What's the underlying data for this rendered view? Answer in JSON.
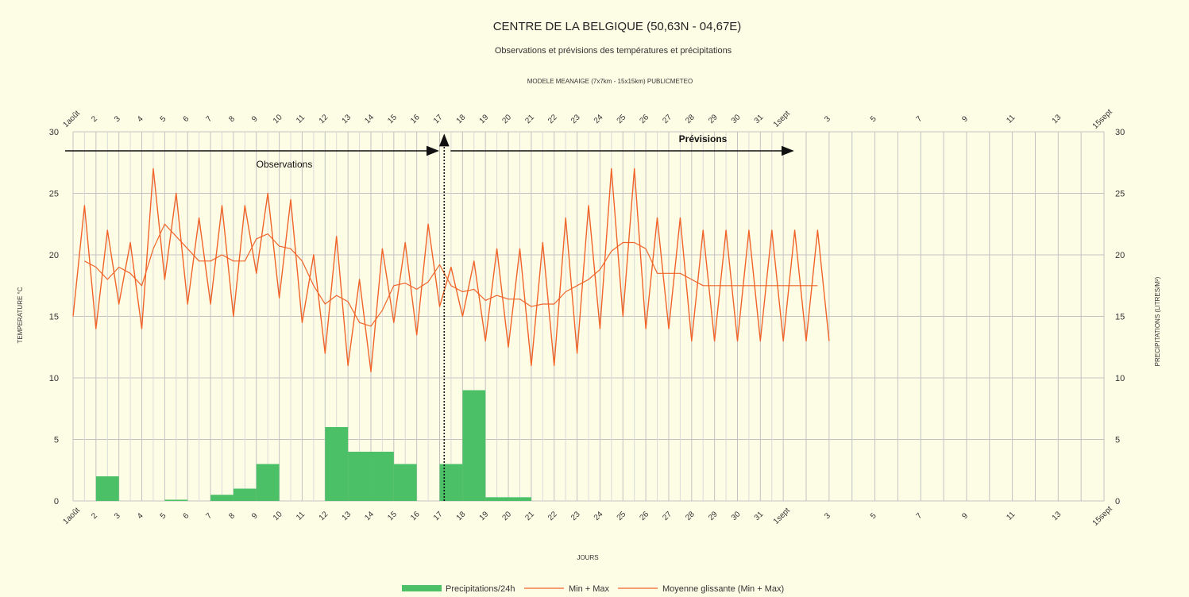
{
  "chart_data": {
    "type": "bar+line",
    "title": "CENTRE DE LA BELGIQUE (50,63N - 04,67E)",
    "subtitle": "Observations et prévisions des températures et précipitations",
    "model_label": "MODELE MEANAIGE (7x7km - 15x15km) PUBLICMETEO",
    "xlabel": "JOURS",
    "ylabel_left": "TEMPERATURE °C",
    "ylabel_right": "PRECIPITATIONS (LITRES/M²)",
    "ylim": [
      0,
      30
    ],
    "yticks": [
      0,
      5,
      10,
      15,
      20,
      25,
      30
    ],
    "x_range_days": [
      1,
      46
    ],
    "x_ticks": [
      {
        "day": 1,
        "label": "1août"
      },
      {
        "day": 2,
        "label": "2"
      },
      {
        "day": 3,
        "label": "3"
      },
      {
        "day": 4,
        "label": "4"
      },
      {
        "day": 5,
        "label": "5"
      },
      {
        "day": 6,
        "label": "6"
      },
      {
        "day": 7,
        "label": "7"
      },
      {
        "day": 8,
        "label": "8"
      },
      {
        "day": 9,
        "label": "9"
      },
      {
        "day": 10,
        "label": "10"
      },
      {
        "day": 11,
        "label": "11"
      },
      {
        "day": 12,
        "label": "12"
      },
      {
        "day": 13,
        "label": "13"
      },
      {
        "day": 14,
        "label": "14"
      },
      {
        "day": 15,
        "label": "15"
      },
      {
        "day": 16,
        "label": "16"
      },
      {
        "day": 17,
        "label": "17"
      },
      {
        "day": 18,
        "label": "18"
      },
      {
        "day": 19,
        "label": "19"
      },
      {
        "day": 20,
        "label": "20"
      },
      {
        "day": 21,
        "label": "21"
      },
      {
        "day": 22,
        "label": "22"
      },
      {
        "day": 23,
        "label": "23"
      },
      {
        "day": 24,
        "label": "24"
      },
      {
        "day": 25,
        "label": "25"
      },
      {
        "day": 26,
        "label": "26"
      },
      {
        "day": 27,
        "label": "27"
      },
      {
        "day": 28,
        "label": "28"
      },
      {
        "day": 29,
        "label": "29"
      },
      {
        "day": 30,
        "label": "30"
      },
      {
        "day": 31,
        "label": "31"
      },
      {
        "day": 32,
        "label": "1sept"
      },
      {
        "day": 34,
        "label": "3"
      },
      {
        "day": 36,
        "label": "5"
      },
      {
        "day": 38,
        "label": "7"
      },
      {
        "day": 40,
        "label": "9"
      },
      {
        "day": 42,
        "label": "11"
      },
      {
        "day": 44,
        "label": "13"
      },
      {
        "day": 46,
        "label": "15sept"
      }
    ],
    "grid": true,
    "legend_position": "bottom",
    "series": [
      {
        "name": "Precipitations/24h",
        "type": "bar",
        "axis": "right",
        "color": "#4cc066",
        "bars": [
          {
            "start": 2,
            "end": 3,
            "value": 2
          },
          {
            "start": 5,
            "end": 6,
            "value": 0.1
          },
          {
            "start": 7,
            "end": 8,
            "value": 0.5
          },
          {
            "start": 8,
            "end": 9,
            "value": 1
          },
          {
            "start": 9,
            "end": 10,
            "value": 3
          },
          {
            "start": 12,
            "end": 13,
            "value": 6
          },
          {
            "start": 13,
            "end": 14,
            "value": 4
          },
          {
            "start": 14,
            "end": 15,
            "value": 4
          },
          {
            "start": 15,
            "end": 16,
            "value": 3
          },
          {
            "start": 17,
            "end": 18,
            "value": 3
          },
          {
            "start": 18,
            "end": 19,
            "value": 9
          },
          {
            "start": 19,
            "end": 20,
            "value": 0.3
          },
          {
            "start": 20,
            "end": 21,
            "value": 0.3
          }
        ]
      },
      {
        "name": "Min + Max",
        "type": "line",
        "axis": "left",
        "color": "#f0642a",
        "x": [
          1,
          1.5,
          2,
          2.5,
          3,
          3.5,
          4,
          4.5,
          5,
          5.5,
          6,
          6.5,
          7,
          7.5,
          8,
          8.5,
          9,
          9.5,
          10,
          10.5,
          11,
          11.5,
          12,
          12.5,
          13,
          13.5,
          14,
          14.5,
          15,
          15.5,
          16,
          16.5,
          17,
          17.5,
          18,
          18.5,
          19,
          19.5,
          20,
          20.5,
          21,
          21.5,
          22,
          22.5,
          23,
          23.5,
          24,
          24.5,
          25,
          25.5,
          26,
          26.5,
          27,
          27.5,
          28,
          28.5,
          29,
          29.5,
          30,
          30.5,
          31,
          31.5,
          32,
          32.5,
          33,
          33.5,
          34
        ],
        "values": [
          15,
          24,
          14,
          22,
          16,
          21,
          14,
          27,
          18,
          25,
          16,
          23,
          16,
          24,
          15,
          24,
          18.5,
          25,
          16.5,
          24.5,
          14.5,
          20,
          12,
          21.5,
          11,
          18,
          10.5,
          20.5,
          14.5,
          21,
          13.5,
          22.5,
          15.8,
          19,
          15,
          19.5,
          13,
          20.5,
          12.5,
          20.5,
          11,
          21,
          11,
          23,
          12,
          24,
          14,
          27,
          15,
          27,
          14,
          23,
          14,
          23,
          13,
          22,
          13,
          22,
          13,
          22,
          13,
          22,
          13,
          22,
          13,
          22,
          13
        ]
      },
      {
        "name": "Moyenne glissante (Min + Max)",
        "type": "line",
        "axis": "left",
        "color": "#f0642a",
        "x": [
          1.5,
          2,
          2.5,
          3,
          3.5,
          4,
          4.5,
          5,
          5.5,
          6,
          6.5,
          7,
          7.5,
          8,
          8.5,
          9,
          9.5,
          10,
          10.5,
          11,
          11.5,
          12,
          12.5,
          13,
          13.5,
          14,
          14.5,
          15,
          15.5,
          16,
          16.5,
          17,
          17.5,
          18,
          18.5,
          19,
          19.5,
          20,
          20.5,
          21,
          21.5,
          22,
          22.5,
          23,
          23.5,
          24,
          24.5,
          25,
          25.5,
          26,
          26.5,
          27,
          27.5,
          28,
          28.5,
          29,
          29.5,
          30,
          30.5,
          31,
          31.5,
          32,
          32.5,
          33,
          33.5
        ],
        "values": [
          19.5,
          19,
          18,
          19,
          18.5,
          17.5,
          20.5,
          22.5,
          21.5,
          20.5,
          19.5,
          19.5,
          20,
          19.5,
          19.5,
          21.3,
          21.7,
          20.7,
          20.5,
          19.5,
          17.5,
          16,
          16.7,
          16.2,
          14.5,
          14.2,
          15.5,
          17.5,
          17.7,
          17.2,
          17.8,
          19.2,
          17.5,
          17,
          17.2,
          16.3,
          16.7,
          16.4,
          16.4,
          15.8,
          16,
          16,
          17,
          17.5,
          18,
          18.8,
          20.3,
          21,
          21,
          20.5,
          18.5,
          18.5,
          18.5,
          18,
          17.5,
          17.5,
          17.5,
          17.5,
          17.5,
          17.5,
          17.5,
          17.5,
          17.5,
          17.5,
          17.5
        ]
      }
    ],
    "annotations": [
      {
        "text": "Observations",
        "from_day": 1,
        "to_day": 17.2
      },
      {
        "text": "Prévisions",
        "from_day": 17.2,
        "to_day": 32
      },
      {
        "divider_day": 17.2
      }
    ]
  }
}
